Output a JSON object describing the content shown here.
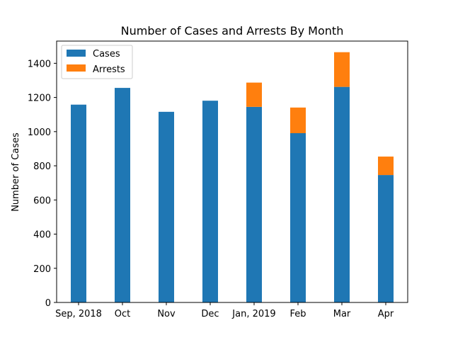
{
  "chart_data": {
    "type": "bar",
    "stacked": true,
    "title": "Number of Cases and Arrests By Month",
    "xlabel": "",
    "ylabel": "Number of Cases",
    "ylim": [
      0,
      1530
    ],
    "yticks": [
      0,
      200,
      400,
      600,
      800,
      1000,
      1200,
      1400
    ],
    "categories": [
      "Sep, 2018",
      "Oct",
      "Nov",
      "Dec",
      "Jan, 2019",
      "Feb",
      "Mar",
      "Apr"
    ],
    "series": [
      {
        "name": "Cases",
        "color": "#1f77b4",
        "values": [
          1158,
          1256,
          1116,
          1181,
          1145,
          991,
          1262,
          746
        ]
      },
      {
        "name": "Arrests",
        "color": "#ff7f0e",
        "values": [
          0,
          0,
          0,
          0,
          142,
          150,
          203,
          108
        ]
      }
    ],
    "legend_position": "upper-left",
    "grid": false
  }
}
